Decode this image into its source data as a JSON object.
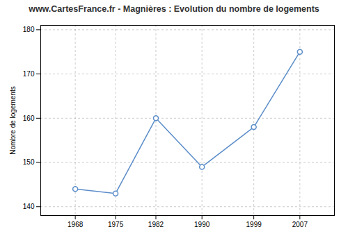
{
  "chart_data": {
    "type": "line",
    "title": "www.CartesFrance.fr - Magnières : Evolution du nombre de logements",
    "ylabel": "Nombre de logements",
    "x": [
      1968,
      1975,
      1982,
      1990,
      1999,
      2007
    ],
    "values": [
      144,
      143,
      160,
      149,
      158,
      175
    ],
    "color": "#5b8dc9",
    "marker": "circle",
    "xlim": [
      1962,
      2013
    ],
    "xticks": [
      1968,
      1975,
      1982,
      1990,
      1999,
      2007
    ],
    "ylim": [
      138,
      181
    ],
    "yticks": [
      140,
      150,
      160,
      170,
      180
    ],
    "grid": true
  }
}
